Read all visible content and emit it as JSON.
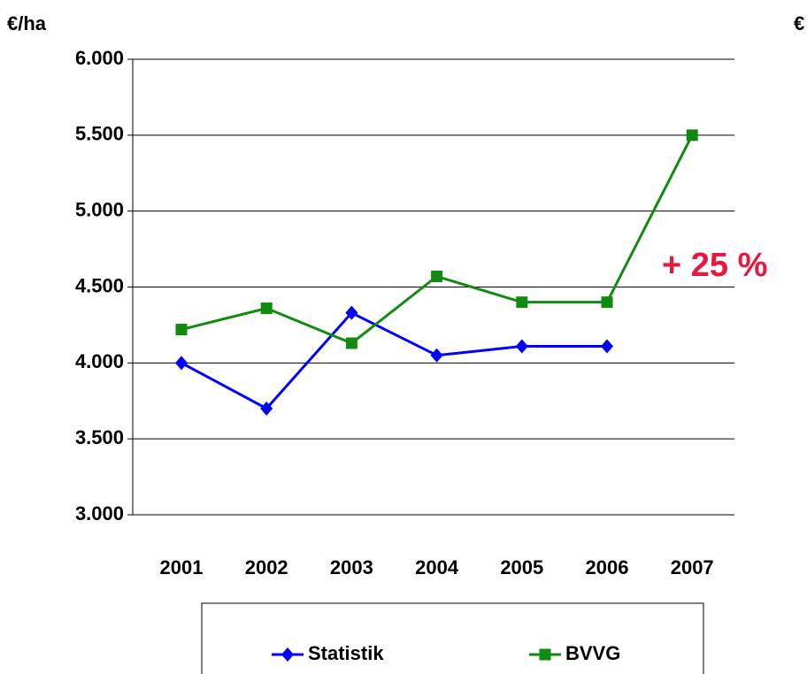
{
  "chart_data": {
    "type": "line",
    "y_axis_label": "€/ha",
    "corner_label": "€",
    "annotation": "+ 25 %",
    "annotation_color": "#e8173f",
    "categories": [
      "2001",
      "2002",
      "2003",
      "2004",
      "2005",
      "2006",
      "2007"
    ],
    "series": [
      {
        "name": "Statistik",
        "color": "#0000ff",
        "marker": "diamond",
        "values": [
          4000,
          3700,
          4330,
          4050,
          4110,
          4110,
          null
        ]
      },
      {
        "name": "BVVG",
        "color": "#128a12",
        "marker": "square",
        "values": [
          4220,
          4360,
          4130,
          4570,
          4400,
          4400,
          5500
        ]
      }
    ],
    "ylim": [
      3000,
      6000
    ],
    "yticks": [
      {
        "value": 3000,
        "label": "3.000"
      },
      {
        "value": 3500,
        "label": "3.500"
      },
      {
        "value": 4000,
        "label": "4.000"
      },
      {
        "value": 4500,
        "label": "4.500"
      },
      {
        "value": 5000,
        "label": "5.000"
      },
      {
        "value": 5500,
        "label": "5.500"
      },
      {
        "value": 6000,
        "label": "6.000"
      }
    ],
    "grid": true,
    "legend": "bottom"
  }
}
